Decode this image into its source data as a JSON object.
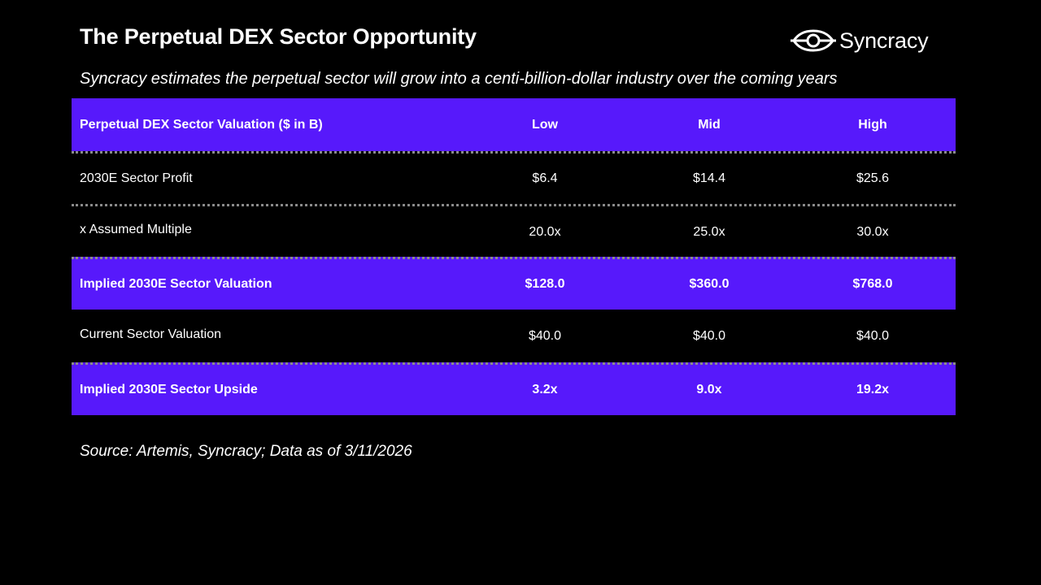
{
  "title": "The Perpetual DEX Sector Opportunity",
  "logo": {
    "text": "Syncracy",
    "icon": "syncracy-logo-icon"
  },
  "subtitle": "Syncracy estimates the perpetual sector will grow into a centi-billion-dollar industry over the coming years",
  "table": {
    "header": {
      "label": "Perpetual DEX Sector Valuation ($ in B)",
      "columns": [
        "Low",
        "Mid",
        "High"
      ]
    },
    "rows": [
      {
        "label": "2030E Sector Profit",
        "values": [
          "$6.4",
          "$14.4",
          "$25.6"
        ]
      },
      {
        "label": "x Assumed Multiple",
        "values": [
          "20.0x",
          "25.0x",
          "30.0x"
        ]
      },
      {
        "label": "Implied 2030E Sector Valuation",
        "values": [
          "$128.0",
          "$360.0",
          "$768.0"
        ]
      },
      {
        "label": "Current Sector Valuation",
        "values": [
          "$40.0",
          "$40.0",
          "$40.0"
        ]
      },
      {
        "label": "Implied 2030E Sector Upside",
        "values": [
          "3.2x",
          "9.0x",
          "19.2x"
        ]
      }
    ]
  },
  "source": "Source: Artemis, Syncracy; Data as of 3/11/2026",
  "colors": {
    "background": "#000000",
    "highlight": "#5719fb",
    "text": "#ffffff",
    "separator": "#8a8a8a"
  }
}
